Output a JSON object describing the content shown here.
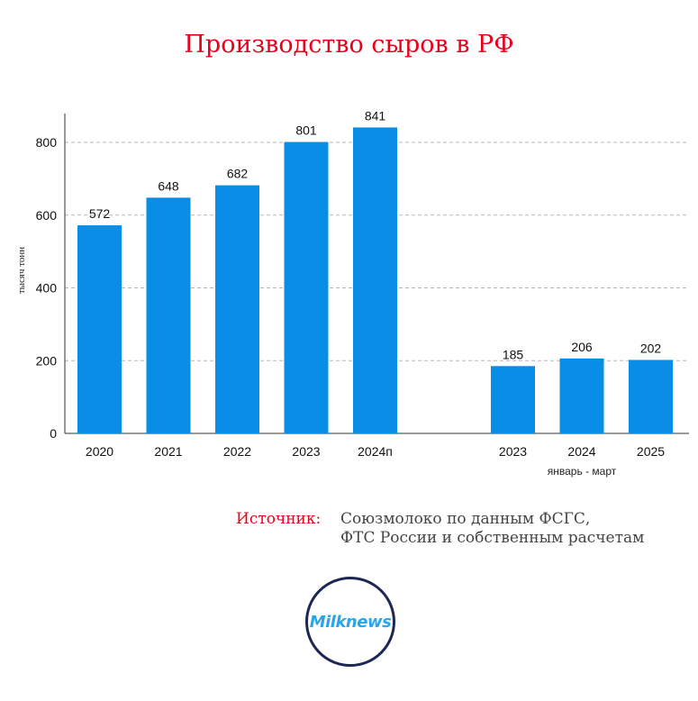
{
  "chart_data": {
    "type": "bar",
    "title": "Производство сыров в РФ",
    "ylabel": "тысяч тонн",
    "ylim": [
      0,
      880
    ],
    "yticks": [
      0,
      200,
      400,
      600,
      800
    ],
    "grid": true,
    "groups": [
      {
        "name": "",
        "categories": [
          "2020",
          "2021",
          "2022",
          "2023",
          "2024п"
        ],
        "values": [
          572,
          648,
          682,
          801,
          841
        ]
      },
      {
        "name": "январь - март",
        "categories": [
          "2023",
          "2024",
          "2025"
        ],
        "values": [
          185,
          206,
          202
        ]
      }
    ],
    "bar_color": "#0a8de6"
  },
  "source": {
    "label": "Источник:",
    "line1": "Союзмолоко по данным ФСГС,",
    "line2": "ФТС России и собственным расчетам"
  },
  "logo": {
    "text": "Milknews"
  }
}
